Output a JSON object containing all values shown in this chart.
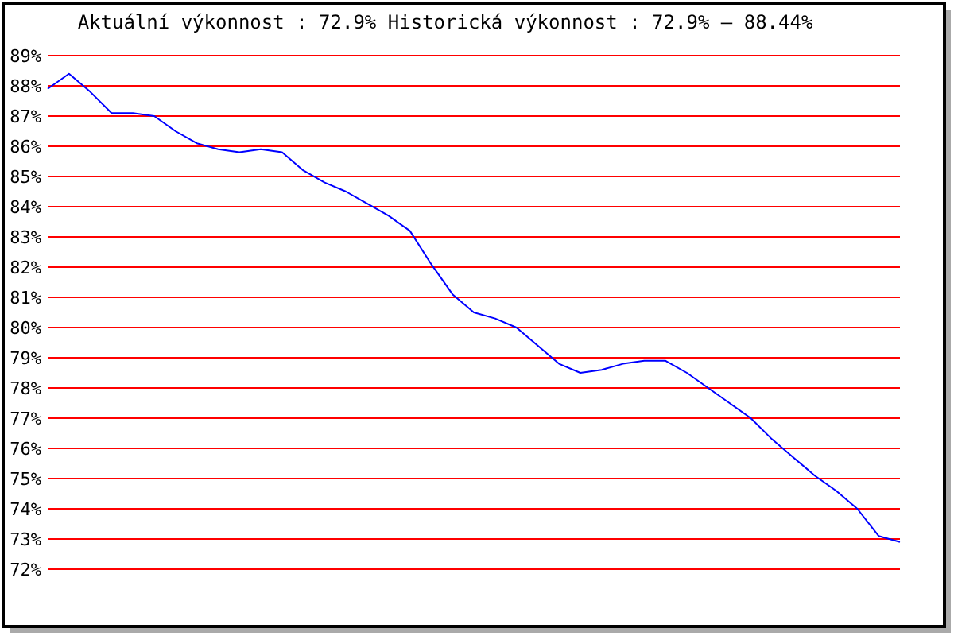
{
  "chart_data": {
    "type": "line",
    "title": "Aktuální výkonnost : 72.9%  Historická výkonnost : 72.9% – 88.44%",
    "categories": [
      null,
      null,
      null,
      null,
      null,
      null,
      null,
      null,
      null,
      null,
      null,
      null,
      null,
      null,
      null,
      null,
      null,
      null,
      null,
      null,
      null,
      null,
      null,
      null,
      null,
      null,
      null,
      null,
      null,
      null,
      null,
      null,
      null,
      null,
      null,
      null,
      null,
      null,
      null,
      null,
      null
    ],
    "series": [
      {
        "color": "#0000ff",
        "values": [
          87.9,
          88.4,
          87.8,
          87.1,
          87.1,
          87.0,
          86.5,
          86.1,
          85.9,
          85.8,
          85.9,
          85.8,
          85.2,
          84.8,
          84.5,
          84.1,
          83.7,
          83.2,
          82.1,
          81.1,
          80.5,
          80.3,
          80.0,
          79.4,
          78.8,
          78.5,
          78.6,
          78.8,
          78.9,
          78.9,
          78.5,
          78.0,
          77.5,
          77.0,
          76.3,
          75.7,
          75.1,
          74.6,
          74.0,
          73.1,
          72.9
        ]
      }
    ],
    "ylim": [
      72,
      89
    ],
    "yticks": [
      {
        "value": 72,
        "label": "72%"
      },
      {
        "value": 73,
        "label": "73%"
      },
      {
        "value": 74,
        "label": "74%"
      },
      {
        "value": 75,
        "label": "75%"
      },
      {
        "value": 76,
        "label": "76%"
      },
      {
        "value": 77,
        "label": "77%"
      },
      {
        "value": 78,
        "label": "78%"
      },
      {
        "value": 79,
        "label": "79%"
      },
      {
        "value": 80,
        "label": "80%"
      },
      {
        "value": 81,
        "label": "81%"
      },
      {
        "value": 82,
        "label": "82%"
      },
      {
        "value": 83,
        "label": "83%"
      },
      {
        "value": 84,
        "label": "84%"
      },
      {
        "value": 85,
        "label": "85%"
      },
      {
        "value": 86,
        "label": "86%"
      },
      {
        "value": 87,
        "label": "87%"
      },
      {
        "value": 88,
        "label": "88%"
      },
      {
        "value": 89,
        "label": "89%"
      }
    ],
    "grid": "y",
    "tick_labels": "y",
    "marker": "none",
    "line_style": "solid"
  }
}
